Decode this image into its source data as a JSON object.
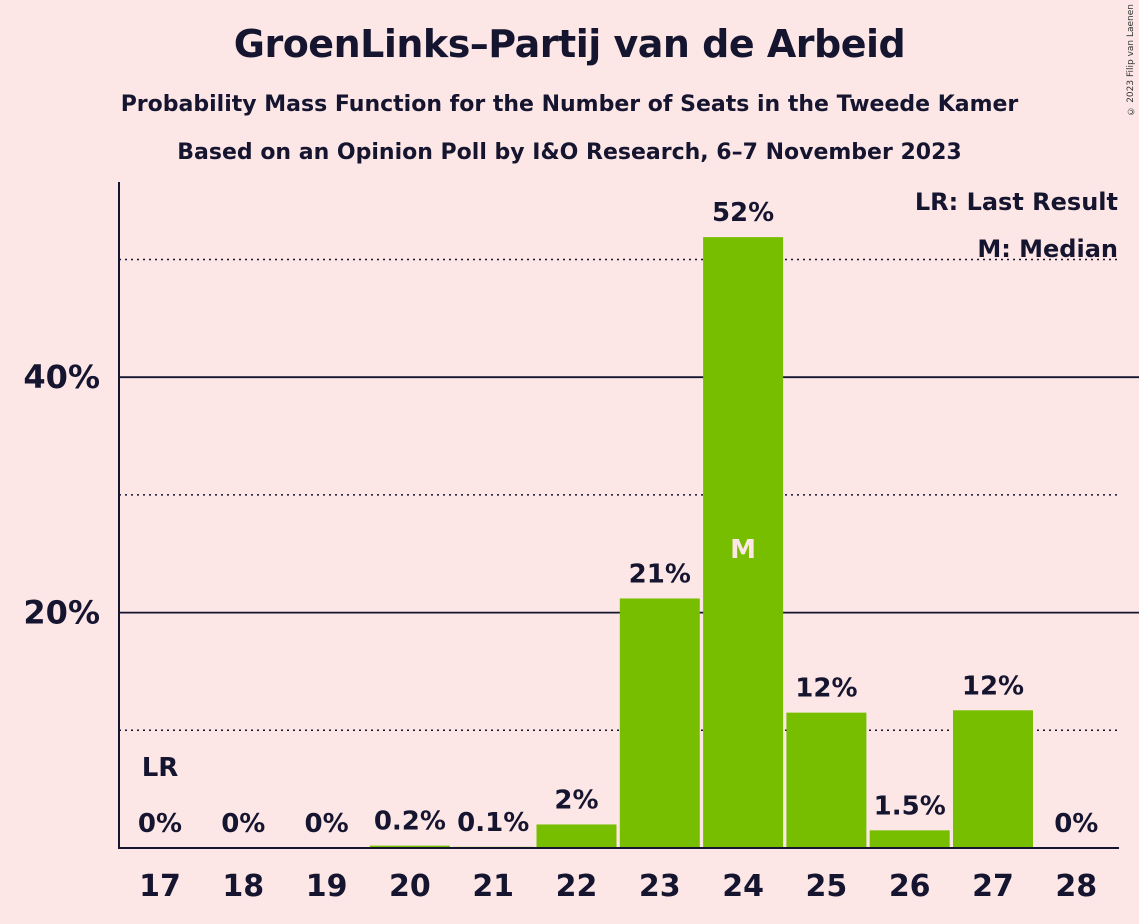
{
  "chart_data": {
    "type": "bar",
    "title": "GroenLinks–Partij van de Arbeid",
    "subtitle": "Probability Mass Function for the Number of Seats in the Tweede Kamer",
    "subtitle2": "Based on an Opinion Poll by I&O Research, 6–7 November 2023",
    "copyright": "© 2023 Filip van Laenen",
    "categories": [
      "17",
      "18",
      "19",
      "20",
      "21",
      "22",
      "23",
      "24",
      "25",
      "26",
      "27",
      "28"
    ],
    "values": [
      0,
      0,
      0,
      0.2,
      0.1,
      2,
      21.2,
      51.9,
      11.5,
      1.5,
      11.7,
      0
    ],
    "value_labels": [
      "0%",
      "0%",
      "0%",
      "0.2%",
      "0.1%",
      "2%",
      "21%",
      "52%",
      "12%",
      "1.5%",
      "12%",
      "0%"
    ],
    "ylim": [
      0,
      56
    ],
    "yticks": [
      20,
      40
    ],
    "ytick_labels": [
      "20%",
      "40%"
    ],
    "dotted_gridlines": [
      10,
      30,
      50
    ],
    "last_result_category": "17",
    "last_result_marker": "LR",
    "median_category": "24",
    "median_marker": "M",
    "legend": [
      "LR: Last Result",
      "M: Median"
    ],
    "legend_position": "top-right",
    "colors": {
      "bar": "#77be00",
      "background": "#fce6e6",
      "text": "#151530",
      "median_text": "#fce6e6"
    }
  }
}
